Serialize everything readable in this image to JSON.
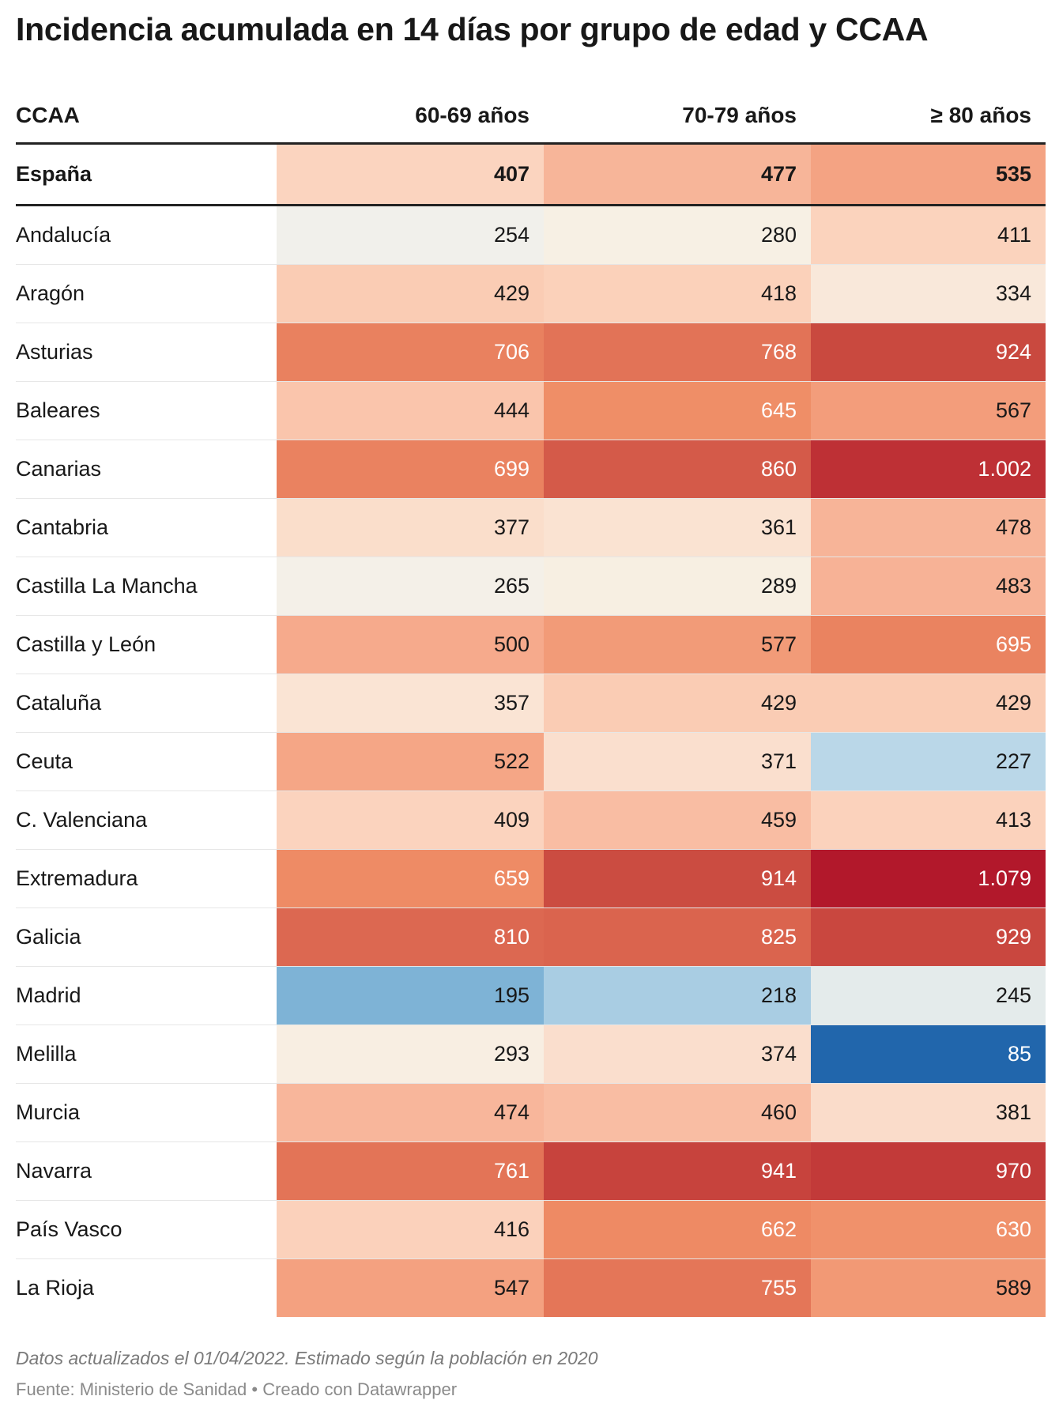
{
  "title": "Incidencia acumulada en 14 días por grupo de edad y CCAA",
  "notes": "Datos actualizados el 01/04/2022. Estimado según la población en 2020",
  "source": "Fuente: Ministerio de Sanidad • Creado con Datawrapper",
  "chart_data": {
    "type": "table",
    "columns": [
      "CCAA",
      "60-69 años",
      "70-79 años",
      "≥ 80 años"
    ],
    "total_row": {
      "name": "España",
      "values": [
        "407",
        "477",
        "535"
      ]
    },
    "rows": [
      {
        "name": "Andalucía",
        "values": [
          "254",
          "280",
          "411"
        ]
      },
      {
        "name": "Aragón",
        "values": [
          "429",
          "418",
          "334"
        ]
      },
      {
        "name": "Asturias",
        "values": [
          "706",
          "768",
          "924"
        ]
      },
      {
        "name": "Baleares",
        "values": [
          "444",
          "645",
          "567"
        ]
      },
      {
        "name": "Canarias",
        "values": [
          "699",
          "860",
          "1.002"
        ]
      },
      {
        "name": "Cantabria",
        "values": [
          "377",
          "361",
          "478"
        ]
      },
      {
        "name": "Castilla La Mancha",
        "values": [
          "265",
          "289",
          "483"
        ]
      },
      {
        "name": "Castilla y León",
        "values": [
          "500",
          "577",
          "695"
        ]
      },
      {
        "name": "Cataluña",
        "values": [
          "357",
          "429",
          "429"
        ]
      },
      {
        "name": "Ceuta",
        "values": [
          "522",
          "371",
          "227"
        ]
      },
      {
        "name": "C. Valenciana",
        "values": [
          "409",
          "459",
          "413"
        ]
      },
      {
        "name": "Extremadura",
        "values": [
          "659",
          "914",
          "1.079"
        ]
      },
      {
        "name": "Galicia",
        "values": [
          "810",
          "825",
          "929"
        ]
      },
      {
        "name": "Madrid",
        "values": [
          "195",
          "218",
          "245"
        ]
      },
      {
        "name": "Melilla",
        "values": [
          "293",
          "374",
          "85"
        ]
      },
      {
        "name": "Murcia",
        "values": [
          "474",
          "460",
          "381"
        ]
      },
      {
        "name": "Navarra",
        "values": [
          "761",
          "941",
          "970"
        ]
      },
      {
        "name": "País Vasco",
        "values": [
          "416",
          "662",
          "630"
        ]
      },
      {
        "name": "La Rioja",
        "values": [
          "547",
          "755",
          "589"
        ]
      }
    ]
  }
}
